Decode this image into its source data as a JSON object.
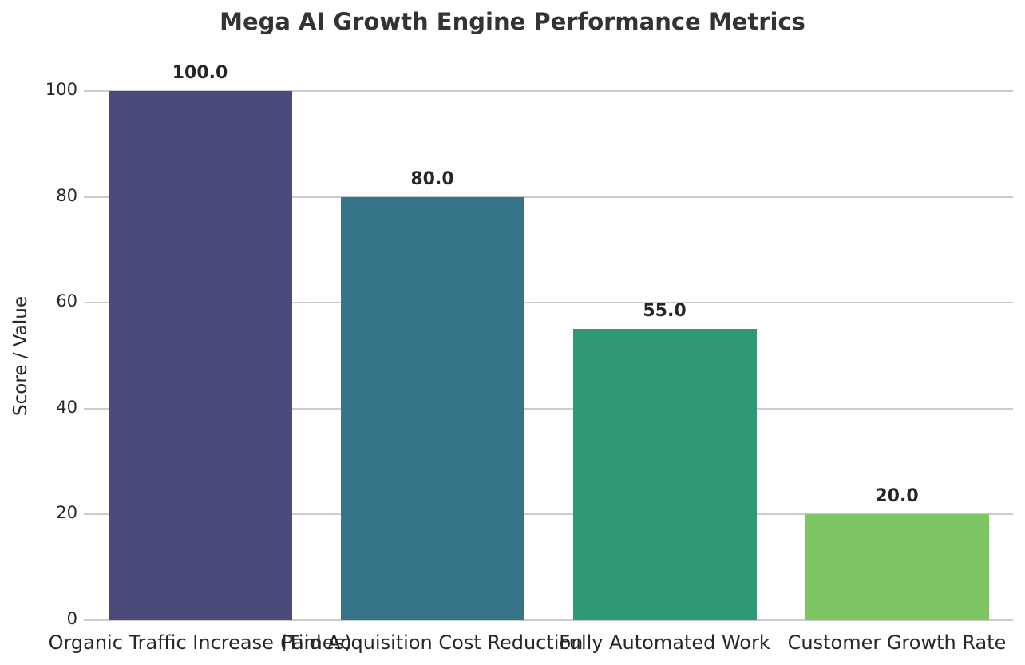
{
  "chart_data": {
    "type": "bar",
    "title": "Mega AI Growth Engine Performance Metrics",
    "ylabel": "Score / Value",
    "xlabel": "",
    "categories": [
      "Organic Traffic Increase (Times)",
      "Paid Acquisition Cost Reduction",
      "Fully Automated Work",
      "Customer Growth Rate"
    ],
    "values": [
      100.0,
      80.0,
      55.0,
      20.0
    ],
    "value_labels": [
      "100.0",
      "80.0",
      "55.0",
      "20.0"
    ],
    "bar_colors": [
      "#4a4a7c",
      "#36748a",
      "#2f9877",
      "#7dc462"
    ],
    "yticks": [
      0,
      20,
      40,
      60,
      80,
      100
    ],
    "ytick_labels": [
      "0",
      "20",
      "40",
      "60",
      "80",
      "100"
    ],
    "ylim": [
      0,
      100
    ],
    "grid": true,
    "legend": false,
    "gridline_color": "#cccccc",
    "background_color": "#ffffff",
    "text_color": "#262626",
    "title_color": "#333333"
  }
}
